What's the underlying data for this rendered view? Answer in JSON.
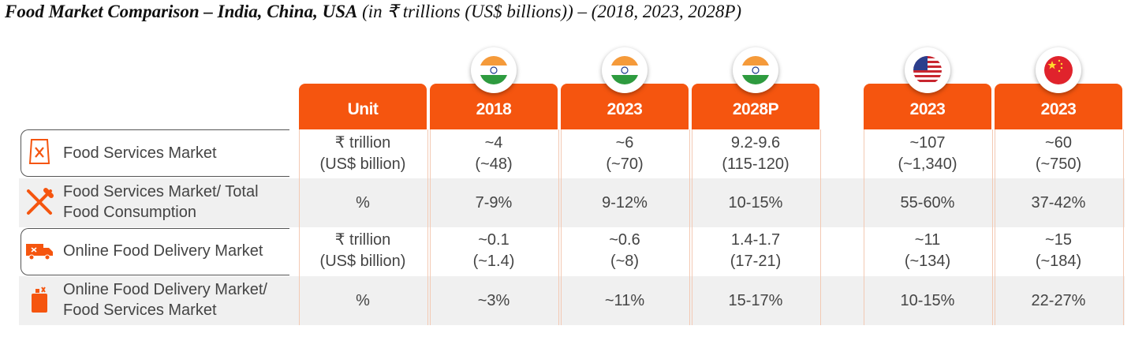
{
  "title": {
    "bold": "Food Market Comparison – India, China, USA",
    "rest": " (in ₹ trillions (US$ billions)) – (2018, 2023, 2028P)"
  },
  "colors": {
    "accent": "#f5550f",
    "band": "#f0f0f0"
  },
  "headers": [
    {
      "label": "Unit",
      "flag": ""
    },
    {
      "label": "2018",
      "flag": "india-flag-icon"
    },
    {
      "label": "2023",
      "flag": "india-flag-icon"
    },
    {
      "label": "2028P",
      "flag": "india-flag-icon"
    },
    {
      "label": "2023",
      "flag": "usa-flag-icon"
    },
    {
      "label": "2023",
      "flag": "china-flag-icon"
    }
  ],
  "rows": [
    {
      "label": "Food Services Market",
      "icon": "food-bag-icon",
      "unit": [
        "₹ trillion",
        "(US$ billion)"
      ],
      "values": [
        [
          "~4",
          "(~48)"
        ],
        [
          "~6",
          "(~70)"
        ],
        [
          "9.2-9.6",
          "(115-120)"
        ],
        [
          "~107",
          "(~1,340)"
        ],
        [
          "~60",
          "(~750)"
        ]
      ]
    },
    {
      "label": "Food Services Market/ Total Food Consumption",
      "label_lines": [
        "Food Services Market/ Total",
        "Food Consumption"
      ],
      "icon": "fork-knife-icon",
      "unit": [
        "%"
      ],
      "values": [
        [
          "7-9%"
        ],
        [
          "9-12%"
        ],
        [
          "10-15%"
        ],
        [
          "55-60%"
        ],
        [
          "37-42%"
        ]
      ]
    },
    {
      "label": "Online Food Delivery Market",
      "icon": "delivery-truck-icon",
      "unit": [
        "₹ trillion",
        "(US$ billion)"
      ],
      "values": [
        [
          "~0.1",
          "(~1.4)"
        ],
        [
          "~0.6",
          "(~8)"
        ],
        [
          "1.4-1.7",
          "(17-21)"
        ],
        [
          "~11",
          "(~134)"
        ],
        [
          "~15",
          "(~184)"
        ]
      ]
    },
    {
      "label": "Online Food Delivery Market/ Food Services Market",
      "label_lines": [
        "Online Food Delivery Market/",
        "Food Services Market"
      ],
      "icon": "delivery-bag-icon",
      "unit": [
        "%"
      ],
      "values": [
        [
          "~3%"
        ],
        [
          "~11%"
        ],
        [
          "15-17%"
        ],
        [
          "10-15%"
        ],
        [
          "22-27%"
        ]
      ]
    }
  ]
}
